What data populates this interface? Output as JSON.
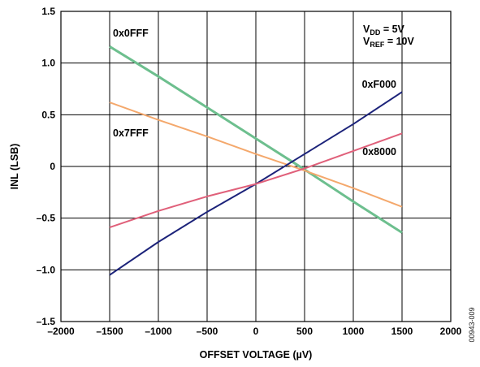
{
  "chart_data": {
    "type": "line",
    "xlabel": "OFFSET VOLTAGE (µV)",
    "ylabel": "INL (LSB)",
    "xlim": [
      -2000,
      2000
    ],
    "ylim": [
      -1.5,
      1.5
    ],
    "x_ticks": [
      -2000,
      -1500,
      -1000,
      -500,
      0,
      500,
      1000,
      1500,
      2000
    ],
    "x_tick_labels": [
      "–2000",
      "–1500",
      "–1000",
      "–500",
      "0",
      "500",
      "1000",
      "1500",
      "2000"
    ],
    "y_ticks": [
      -1.5,
      -1.0,
      -0.5,
      0,
      0.5,
      1.0,
      1.5
    ],
    "y_tick_labels": [
      "–1.5",
      "–1.0",
      "–0.5",
      "0",
      "0.5",
      "1.0",
      "1.5"
    ],
    "grid": true,
    "series": [
      {
        "name": "0x0FFF",
        "color": "#6dbf8e",
        "x": [
          -1500,
          -1000,
          -500,
          0,
          500,
          1000,
          1500
        ],
        "y": [
          1.16,
          0.87,
          0.57,
          0.27,
          -0.03,
          -0.34,
          -0.64
        ]
      },
      {
        "name": "0x7FFF",
        "color": "#f4a86c",
        "x": [
          -1500,
          -1000,
          -500,
          0,
          500,
          1000,
          1500
        ],
        "y": [
          0.62,
          0.45,
          0.29,
          0.12,
          -0.04,
          -0.21,
          -0.39
        ]
      },
      {
        "name": "0xF000",
        "color": "#1c237a",
        "x": [
          -1500,
          -1000,
          -500,
          0,
          500,
          1000,
          1500
        ],
        "y": [
          -1.05,
          -0.73,
          -0.44,
          -0.17,
          0.12,
          0.41,
          0.72
        ]
      },
      {
        "name": "0x8000",
        "color": "#e0607a",
        "x": [
          -1500,
          -1000,
          -500,
          0,
          500,
          1000,
          1500
        ],
        "y": [
          -0.59,
          -0.43,
          -0.29,
          -0.17,
          -0.02,
          0.15,
          0.32
        ]
      }
    ],
    "conditions": [
      {
        "main": "V",
        "sub": "DD",
        "rest": " = 5V"
      },
      {
        "main": "V",
        "sub": "REF",
        "rest": " = 10V"
      }
    ],
    "figure_id": "00943-009"
  }
}
